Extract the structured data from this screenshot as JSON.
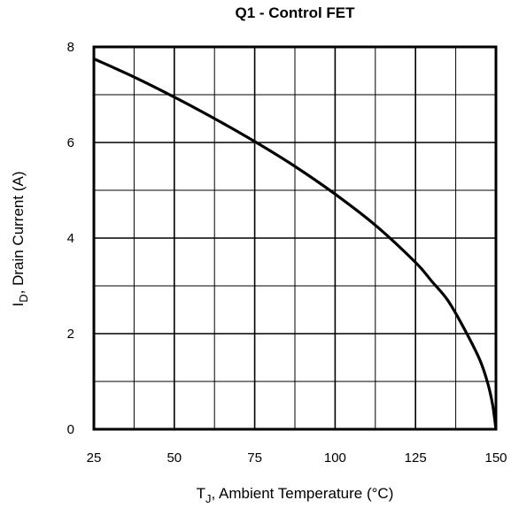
{
  "chart_data": {
    "type": "line",
    "title": "Q1 - Control FET",
    "xlabel": {
      "main": "T",
      "sub": "J",
      "rest": ", Ambient Temperature (°C)"
    },
    "ylabel": {
      "main": "I",
      "sub": "D",
      "rest": ",  Drain Current (A)"
    },
    "xlim": [
      25,
      150
    ],
    "ylim": [
      0,
      8
    ],
    "x_ticks": [
      25,
      50,
      75,
      100,
      125,
      150
    ],
    "y_ticks": [
      0,
      2,
      4,
      6,
      8
    ],
    "x_minor_grid_step": 12.5,
    "y_minor_grid_step": 1,
    "grid": true,
    "series": [
      {
        "color": "#000000",
        "points": [
          [
            25,
            7.75
          ],
          [
            37.5,
            7.37
          ],
          [
            50,
            6.95
          ],
          [
            62.5,
            6.5
          ],
          [
            75,
            6.02
          ],
          [
            87.5,
            5.5
          ],
          [
            100,
            4.92
          ],
          [
            112.5,
            4.27
          ],
          [
            125,
            3.49
          ],
          [
            130,
            3.1
          ],
          [
            135,
            2.7
          ],
          [
            140,
            2.12
          ],
          [
            145,
            1.45
          ],
          [
            147.5,
            0.95
          ],
          [
            149,
            0.5
          ],
          [
            150,
            0
          ]
        ]
      }
    ]
  }
}
